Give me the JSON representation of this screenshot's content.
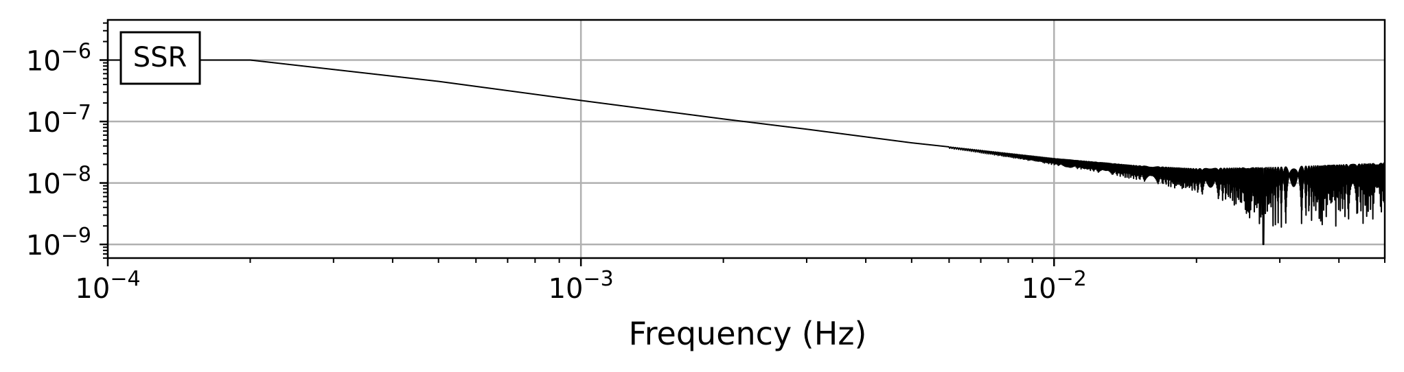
{
  "chart_data": {
    "type": "line",
    "title": "",
    "xlabel": "Frequency (Hz)",
    "ylabel": "",
    "xscale": "log",
    "yscale": "log",
    "xlim": [
      0.0001,
      0.05
    ],
    "ylim": [
      6e-10,
      4.5e-06
    ],
    "grid": true,
    "legend_position": "top-left",
    "colors": {
      "line": "#000000",
      "grid": "#b0b0b0",
      "frame": "#000000"
    },
    "x_ticks": [
      {
        "value": 0.0001,
        "base": "10",
        "exp": "−4"
      },
      {
        "value": 0.001,
        "base": "10",
        "exp": "−3"
      },
      {
        "value": 0.01,
        "base": "10",
        "exp": "−2"
      }
    ],
    "y_ticks": [
      {
        "value": 1e-06,
        "base": "10",
        "exp": "−6"
      },
      {
        "value": 1e-07,
        "base": "10",
        "exp": "−7"
      },
      {
        "value": 1e-08,
        "base": "10",
        "exp": "−8"
      },
      {
        "value": 1e-09,
        "base": "10",
        "exp": "−9"
      }
    ],
    "series": [
      {
        "name": "SSR",
        "description_of_shape": "flat to 2e-4 Hz, then power-law decline ~f^-0.65; oscillations with nulls grow above ~7e-3 Hz",
        "x": [
          0.0001,
          0.0002,
          0.0005,
          0.001,
          0.002,
          0.003,
          0.005,
          0.007,
          0.01,
          0.015,
          0.02,
          0.03,
          0.05
        ],
        "y": [
          1e-06,
          1e-06,
          4.5e-07,
          2.2e-07,
          1.1e-07,
          7.5e-08,
          4.5e-08,
          3.4e-08,
          2.5e-08,
          1.9e-08,
          1.7e-08,
          1.8e-08,
          2.1e-08
        ]
      }
    ]
  }
}
